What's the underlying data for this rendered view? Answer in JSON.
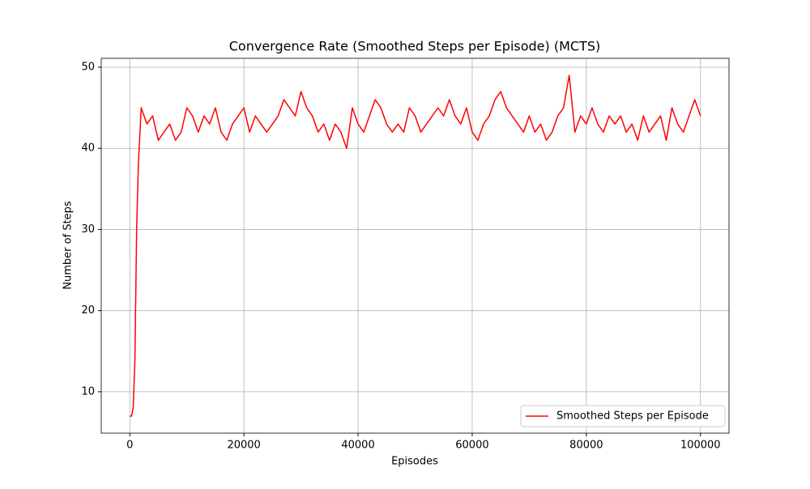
{
  "chart_data": {
    "type": "line",
    "title": "Convergence Rate (Smoothed Steps per Episode) (MCTS)",
    "x_label": "Episodes",
    "y_label": "Number of Steps",
    "x": [
      0,
      300,
      600,
      900,
      1200,
      1500,
      2000,
      3000,
      4000,
      5000,
      6000,
      7000,
      8000,
      9000,
      10000,
      11000,
      12000,
      13000,
      14000,
      15000,
      16000,
      17000,
      18000,
      19000,
      20000,
      21000,
      22000,
      23000,
      24000,
      25000,
      26000,
      27000,
      28000,
      29000,
      30000,
      31000,
      32000,
      33000,
      34000,
      35000,
      36000,
      37000,
      38000,
      39000,
      40000,
      41000,
      42000,
      43000,
      44000,
      45000,
      46000,
      47000,
      48000,
      49000,
      50000,
      51000,
      52000,
      53000,
      54000,
      55000,
      56000,
      57000,
      58000,
      59000,
      60000,
      61000,
      62000,
      63000,
      64000,
      65000,
      66000,
      67000,
      68000,
      69000,
      70000,
      71000,
      72000,
      73000,
      74000,
      75000,
      76000,
      77000,
      78000,
      79000,
      80000,
      81000,
      82000,
      83000,
      84000,
      85000,
      86000,
      87000,
      88000,
      89000,
      90000,
      91000,
      92000,
      93000,
      94000,
      95000,
      96000,
      97000,
      98000,
      99000,
      100000
    ],
    "series": [
      {
        "name": "Smoothed Steps per Episode",
        "color": "#ff0000",
        "values": [
          7,
          7,
          8,
          14,
          30,
          38,
          45,
          43,
          44,
          41,
          42,
          43,
          41,
          42,
          45,
          44,
          42,
          44,
          43,
          45,
          42,
          41,
          43,
          44,
          45,
          42,
          44,
          43,
          42,
          43,
          44,
          46,
          45,
          44,
          47,
          45,
          44,
          42,
          43,
          41,
          43,
          42,
          40,
          45,
          43,
          42,
          44,
          46,
          45,
          43,
          42,
          43,
          42,
          45,
          44,
          42,
          43,
          44,
          45,
          44,
          46,
          44,
          43,
          45,
          42,
          41,
          43,
          44,
          46,
          47,
          45,
          44,
          43,
          42,
          44,
          42,
          43,
          41,
          42,
          44,
          45,
          49,
          42,
          44,
          43,
          45,
          43,
          42,
          44,
          43,
          44,
          42,
          43,
          41,
          44,
          42,
          43,
          44,
          41,
          45,
          43,
          42,
          44,
          46,
          44
        ]
      }
    ],
    "xlim": [
      -5000,
      105000
    ],
    "ylim": [
      4.9,
      51.1
    ],
    "xticks": [
      0,
      20000,
      40000,
      60000,
      80000,
      100000
    ],
    "yticks": [
      10,
      20,
      30,
      40,
      50
    ],
    "grid": true,
    "legend": "lower right"
  }
}
